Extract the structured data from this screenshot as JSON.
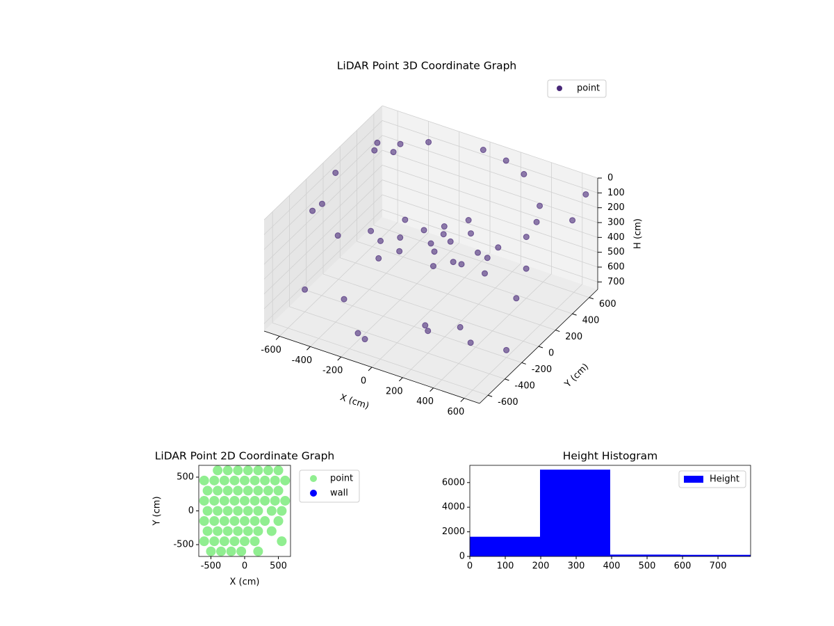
{
  "chart_data": [
    {
      "type": "scatter3d",
      "title": "LiDAR Point 3D Coordinate Graph",
      "xlabel": "X (cm)",
      "ylabel": "Y (cm)",
      "zlabel": "H (cm)",
      "xlim": [
        -700,
        700
      ],
      "ylim": [
        -700,
        700
      ],
      "zlim": [
        0,
        750
      ],
      "z_inverted": true,
      "xticks": [
        -600,
        -400,
        -200,
        0,
        200,
        400,
        600
      ],
      "yticks": [
        -600,
        -400,
        -200,
        0,
        200,
        400,
        600
      ],
      "zticks": [
        0,
        100,
        200,
        300,
        400,
        500,
        600,
        700
      ],
      "grid": true,
      "legend": "upper right",
      "series": [
        {
          "name": "point",
          "color": "#482878",
          "x": [
            620,
            599,
            537,
            310,
            160,
            0,
            -310,
            -440,
            -537,
            -620,
            -537,
            -310,
            0,
            310,
            440,
            537,
            -100,
            0,
            100,
            -200,
            50,
            150,
            -50,
            200,
            -150,
            0,
            250,
            -250,
            80,
            300,
            350,
            -300,
            -400,
            200,
            500,
            -500,
            300,
            -200,
            450,
            100,
            -600,
            600,
            400,
            -100,
            -650,
            650,
            -660,
            700,
            -600
          ],
          "y": [
            0,
            160,
            310,
            537,
            599,
            620,
            537,
            440,
            310,
            0,
            -310,
            -537,
            -620,
            -537,
            -440,
            -310,
            100,
            150,
            50,
            0,
            -50,
            200,
            250,
            -100,
            -100,
            0,
            100,
            150,
            300,
            250,
            0,
            -50,
            -300,
            -400,
            100,
            200,
            -200,
            -500,
            -350,
            -250,
            -400,
            -200,
            400,
            -600,
            550,
            650,
            -200,
            400,
            650
          ],
          "z": [
            40,
            35,
            30,
            20,
            15,
            10,
            20,
            25,
            30,
            40,
            50,
            60,
            60,
            50,
            45,
            40,
            300,
            320,
            280,
            330,
            310,
            290,
            340,
            300,
            350,
            300,
            330,
            310,
            280,
            360,
            380,
            360,
            650,
            600,
            550,
            500,
            650,
            700,
            620,
            680,
            600,
            700,
            550,
            650,
            150,
            100,
            200,
            120,
            250
          ]
        }
      ]
    },
    {
      "type": "scatter",
      "title": "LiDAR Point 2D Coordinate Graph",
      "xlabel": "X (cm)",
      "ylabel": "Y (cm)",
      "xlim": [
        -680,
        680
      ],
      "ylim": [
        -675,
        675
      ],
      "xticks": [
        -500,
        0,
        500
      ],
      "yticks": [
        -500,
        0,
        500
      ],
      "legend": "outside upper right",
      "series": [
        {
          "name": "point",
          "color": "#90ee90",
          "x": [
            -400,
            -250,
            -100,
            50,
            200,
            350,
            500,
            -600,
            -450,
            -300,
            -150,
            0,
            150,
            300,
            450,
            600,
            -550,
            -400,
            -250,
            -100,
            50,
            200,
            350,
            500,
            -600,
            -450,
            -300,
            -150,
            0,
            150,
            300,
            450,
            600,
            -550,
            -400,
            -250,
            -100,
            50,
            200,
            400,
            550,
            -600,
            -450,
            -300,
            -150,
            0,
            150,
            300,
            500,
            -550,
            -400,
            -250,
            -100,
            50,
            200,
            400,
            -600,
            -450,
            -300,
            -150,
            0,
            150,
            550,
            -500,
            -350,
            -200,
            -50,
            200
          ],
          "y": [
            600,
            600,
            600,
            600,
            600,
            600,
            600,
            450,
            450,
            450,
            450,
            450,
            450,
            450,
            450,
            450,
            300,
            300,
            300,
            300,
            300,
            300,
            300,
            300,
            150,
            150,
            150,
            150,
            150,
            150,
            150,
            150,
            150,
            0,
            0,
            0,
            0,
            0,
            0,
            0,
            0,
            -150,
            -150,
            -150,
            -150,
            -150,
            -150,
            -150,
            -150,
            -300,
            -300,
            -300,
            -300,
            -300,
            -300,
            -300,
            -450,
            -450,
            -450,
            -450,
            -450,
            -450,
            -450,
            -600,
            -600,
            -600,
            -600,
            -600
          ]
        },
        {
          "name": "wall",
          "color": "#0000ff",
          "x": [],
          "y": []
        }
      ]
    },
    {
      "type": "histogram",
      "title": "Height Histogram",
      "bins": [
        0,
        198,
        396,
        594,
        792
      ],
      "counts": [
        1600,
        7050,
        150,
        130
      ],
      "series_name": "Height",
      "color": "#0000ff",
      "xlim": [
        0,
        792
      ],
      "ylim": [
        0,
        7400
      ],
      "xticks": [
        0,
        100,
        200,
        300,
        400,
        500,
        600,
        700
      ],
      "yticks": [
        0,
        2000,
        4000,
        6000
      ],
      "legend": "upper right"
    }
  ]
}
